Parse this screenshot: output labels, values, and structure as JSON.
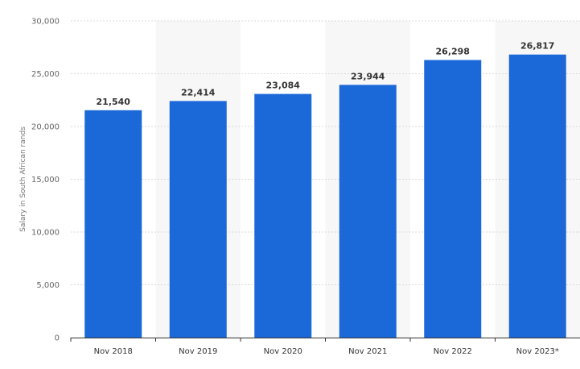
{
  "chart_data": {
    "type": "bar",
    "categories": [
      "Nov 2018",
      "Nov 2019",
      "Nov 2020",
      "Nov 2021",
      "Nov 2022",
      "Nov 2023*"
    ],
    "values": [
      21540,
      22414,
      23084,
      23944,
      26298,
      26817
    ],
    "value_labels": [
      "21,540",
      "22,414",
      "23,084",
      "23,944",
      "26,298",
      "26,817"
    ],
    "ylabel": "Salary in South African rands",
    "xlabel": "",
    "title": "",
    "ylim": [
      0,
      30000
    ],
    "yticks": [
      0,
      5000,
      10000,
      15000,
      20000,
      25000,
      30000
    ],
    "ytick_labels": [
      "0",
      "5,000",
      "10,000",
      "15,000",
      "20,000",
      "25,000",
      "30,000"
    ],
    "grid": true,
    "legend": "none",
    "colors": {
      "bar": "#1b68d8",
      "band": "#f7f7f7",
      "grid": "#d9d9d9",
      "axis": "#333333"
    }
  }
}
